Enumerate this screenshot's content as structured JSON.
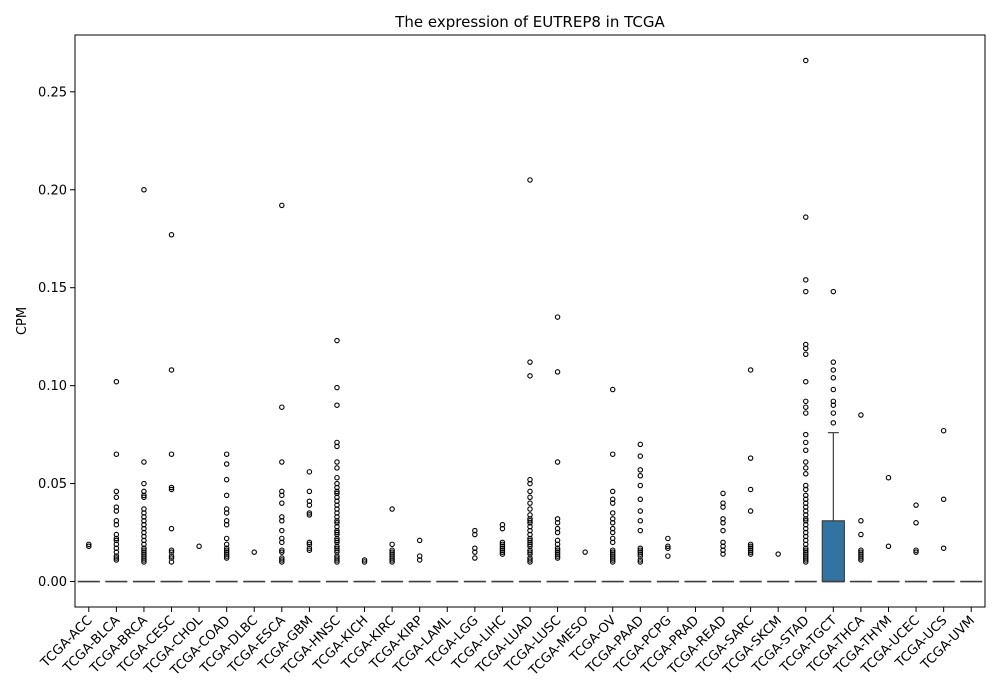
{
  "chart_data": {
    "type": "box",
    "title": "The expression of EUTREP8 in TCGA",
    "xlabel": "",
    "ylabel": "CPM",
    "ylim": [
      -0.013,
      0.279
    ],
    "yticks": [
      0.0,
      0.05,
      0.1,
      0.15,
      0.2,
      0.25
    ],
    "ytick_labels": [
      "0.00",
      "0.05",
      "0.10",
      "0.15",
      "0.20",
      "0.25"
    ],
    "grid": false,
    "box_color": "#3274a1",
    "categories": [
      "TCGA-ACC",
      "TCGA-BLCA",
      "TCGA-BRCA",
      "TCGA-CESC",
      "TCGA-CHOL",
      "TCGA-COAD",
      "TCGA-DLBC",
      "TCGA-ESCA",
      "TCGA-GBM",
      "TCGA-HNSC",
      "TCGA-KICH",
      "TCGA-KIRC",
      "TCGA-KIRP",
      "TCGA-LAML",
      "TCGA-LGG",
      "TCGA-LIHC",
      "TCGA-LUAD",
      "TCGA-LUSC",
      "TCGA-MESO",
      "TCGA-OV",
      "TCGA-PAAD",
      "TCGA-PCPG",
      "TCGA-PRAD",
      "TCGA-READ",
      "TCGA-SARC",
      "TCGA-SKCM",
      "TCGA-STAD",
      "TCGA-TGCT",
      "TCGA-THCA",
      "TCGA-THYM",
      "TCGA-UCEC",
      "TCGA-UCS",
      "TCGA-UVM"
    ],
    "boxes": [
      {
        "q1": 0,
        "median": 0,
        "q3": 0,
        "whisker_low": 0,
        "whisker_high": 0,
        "outliers": [
          0.019,
          0.018
        ]
      },
      {
        "q1": 0,
        "median": 0,
        "q3": 0,
        "whisker_low": 0,
        "whisker_high": 0,
        "outliers": [
          0.102,
          0.065,
          0.046,
          0.043,
          0.038,
          0.036,
          0.031,
          0.029,
          0.024,
          0.022,
          0.021,
          0.019,
          0.017,
          0.015,
          0.013,
          0.012,
          0.011
        ]
      },
      {
        "q1": 0,
        "median": 0,
        "q3": 0,
        "whisker_low": 0,
        "whisker_high": 0,
        "outliers": [
          0.2,
          0.061,
          0.05,
          0.046,
          0.044,
          0.043,
          0.037,
          0.035,
          0.033,
          0.031,
          0.029,
          0.027,
          0.025,
          0.023,
          0.021,
          0.019,
          0.017,
          0.016,
          0.015,
          0.014,
          0.013,
          0.012,
          0.011,
          0.01
        ]
      },
      {
        "q1": 0,
        "median": 0,
        "q3": 0,
        "whisker_low": 0,
        "whisker_high": 0,
        "outliers": [
          0.177,
          0.108,
          0.065,
          0.048,
          0.047,
          0.027,
          0.016,
          0.015,
          0.013,
          0.012,
          0.01
        ]
      },
      {
        "q1": 0,
        "median": 0,
        "q3": 0,
        "whisker_low": 0,
        "whisker_high": 0,
        "outliers": [
          0.018
        ]
      },
      {
        "q1": 0,
        "median": 0,
        "q3": 0,
        "whisker_low": 0,
        "whisker_high": 0,
        "outliers": [
          0.065,
          0.06,
          0.052,
          0.044,
          0.037,
          0.035,
          0.031,
          0.029,
          0.022,
          0.019,
          0.017,
          0.016,
          0.015,
          0.014,
          0.013,
          0.012
        ]
      },
      {
        "q1": 0,
        "median": 0,
        "q3": 0,
        "whisker_low": 0,
        "whisker_high": 0,
        "outliers": [
          0.015
        ]
      },
      {
        "q1": 0,
        "median": 0,
        "q3": 0,
        "whisker_low": 0,
        "whisker_high": 0,
        "outliers": [
          0.192,
          0.089,
          0.061,
          0.046,
          0.044,
          0.04,
          0.033,
          0.031,
          0.026,
          0.022,
          0.02,
          0.016,
          0.015,
          0.012,
          0.011,
          0.01
        ]
      },
      {
        "q1": 0,
        "median": 0,
        "q3": 0,
        "whisker_low": 0,
        "whisker_high": 0,
        "outliers": [
          0.056,
          0.046,
          0.041,
          0.039,
          0.035,
          0.034,
          0.02,
          0.019,
          0.017,
          0.016
        ]
      },
      {
        "q1": 0,
        "median": 0,
        "q3": 0,
        "whisker_low": 0,
        "whisker_high": 0,
        "outliers": [
          0.123,
          0.099,
          0.09,
          0.071,
          0.069,
          0.061,
          0.058,
          0.053,
          0.05,
          0.048,
          0.046,
          0.045,
          0.043,
          0.041,
          0.039,
          0.037,
          0.035,
          0.033,
          0.031,
          0.03,
          0.028,
          0.026,
          0.025,
          0.024,
          0.022,
          0.021,
          0.02,
          0.018,
          0.017,
          0.016,
          0.015,
          0.013,
          0.012,
          0.011,
          0.01
        ]
      },
      {
        "q1": 0,
        "median": 0,
        "q3": 0,
        "whisker_low": 0,
        "whisker_high": 0,
        "outliers": [
          0.011,
          0.01
        ]
      },
      {
        "q1": 0,
        "median": 0,
        "q3": 0,
        "whisker_low": 0,
        "whisker_high": 0,
        "outliers": [
          0.037,
          0.019,
          0.016,
          0.015,
          0.014,
          0.013,
          0.012,
          0.011,
          0.01
        ]
      },
      {
        "q1": 0,
        "median": 0,
        "q3": 0,
        "whisker_low": 0,
        "whisker_high": 0,
        "outliers": [
          0.021,
          0.013,
          0.011
        ]
      },
      {
        "q1": 0,
        "median": 0,
        "q3": 0,
        "whisker_low": 0,
        "whisker_high": 0,
        "outliers": []
      },
      {
        "q1": 0,
        "median": 0,
        "q3": 0,
        "whisker_low": 0,
        "whisker_high": 0,
        "outliers": [
          0.026,
          0.024,
          0.017,
          0.015,
          0.012
        ]
      },
      {
        "q1": 0,
        "median": 0,
        "q3": 0,
        "whisker_low": 0,
        "whisker_high": 0,
        "outliers": [
          0.029,
          0.027,
          0.02,
          0.019,
          0.018,
          0.017,
          0.016,
          0.015,
          0.014
        ]
      },
      {
        "q1": 0,
        "median": 0,
        "q3": 0,
        "whisker_low": 0,
        "whisker_high": 0,
        "outliers": [
          0.205,
          0.112,
          0.105,
          0.052,
          0.05,
          0.046,
          0.043,
          0.04,
          0.037,
          0.034,
          0.032,
          0.031,
          0.03,
          0.028,
          0.026,
          0.024,
          0.022,
          0.021,
          0.02,
          0.019,
          0.018,
          0.016,
          0.015,
          0.014,
          0.012,
          0.011,
          0.01
        ]
      },
      {
        "q1": 0,
        "median": 0,
        "q3": 0,
        "whisker_low": 0,
        "whisker_high": 0,
        "outliers": [
          0.135,
          0.107,
          0.061,
          0.032,
          0.03,
          0.027,
          0.025,
          0.021,
          0.019,
          0.017,
          0.016,
          0.015,
          0.014,
          0.013,
          0.012
        ]
      },
      {
        "q1": 0,
        "median": 0,
        "q3": 0,
        "whisker_low": 0,
        "whisker_high": 0,
        "outliers": [
          0.015
        ]
      },
      {
        "q1": 0,
        "median": 0,
        "q3": 0,
        "whisker_low": 0,
        "whisker_high": 0,
        "outliers": [
          0.098,
          0.065,
          0.046,
          0.042,
          0.04,
          0.035,
          0.032,
          0.03,
          0.027,
          0.025,
          0.022,
          0.02,
          0.016,
          0.015,
          0.014,
          0.013,
          0.012,
          0.011,
          0.01
        ]
      },
      {
        "q1": 0,
        "median": 0,
        "q3": 0,
        "whisker_low": 0,
        "whisker_high": 0,
        "outliers": [
          0.07,
          0.064,
          0.057,
          0.054,
          0.049,
          0.042,
          0.036,
          0.031,
          0.026,
          0.017,
          0.016,
          0.015,
          0.014,
          0.013,
          0.011,
          0.01
        ]
      },
      {
        "q1": 0,
        "median": 0,
        "q3": 0,
        "whisker_low": 0,
        "whisker_high": 0,
        "outliers": [
          0.022,
          0.018,
          0.017,
          0.013
        ]
      },
      {
        "q1": 0,
        "median": 0,
        "q3": 0,
        "whisker_low": 0,
        "whisker_high": 0,
        "outliers": []
      },
      {
        "q1": 0,
        "median": 0,
        "q3": 0,
        "whisker_low": 0,
        "whisker_high": 0,
        "outliers": [
          0.045,
          0.04,
          0.038,
          0.032,
          0.03,
          0.026,
          0.02,
          0.018,
          0.016,
          0.014
        ]
      },
      {
        "q1": 0,
        "median": 0,
        "q3": 0,
        "whisker_low": 0,
        "whisker_high": 0,
        "outliers": [
          0.108,
          0.063,
          0.047,
          0.036,
          0.019,
          0.018,
          0.017,
          0.016,
          0.015,
          0.014
        ]
      },
      {
        "q1": 0,
        "median": 0,
        "q3": 0,
        "whisker_low": 0,
        "whisker_high": 0,
        "outliers": [
          0.014
        ]
      },
      {
        "q1": 0,
        "median": 0,
        "q3": 0,
        "whisker_low": 0,
        "whisker_high": 0,
        "outliers": [
          0.266,
          0.186,
          0.154,
          0.148,
          0.121,
          0.119,
          0.116,
          0.102,
          0.092,
          0.089,
          0.086,
          0.075,
          0.071,
          0.067,
          0.061,
          0.058,
          0.055,
          0.049,
          0.047,
          0.044,
          0.042,
          0.04,
          0.038,
          0.036,
          0.034,
          0.032,
          0.031,
          0.029,
          0.027,
          0.025,
          0.023,
          0.021,
          0.019,
          0.017,
          0.016,
          0.015,
          0.014,
          0.013,
          0.012,
          0.011,
          0.01
        ]
      },
      {
        "q1": 0,
        "median": 0,
        "q3": 0.031,
        "whisker_low": 0,
        "whisker_high": 0.076,
        "outliers": [
          0.148,
          0.112,
          0.108,
          0.104,
          0.098,
          0.092,
          0.09,
          0.086,
          0.081
        ]
      },
      {
        "q1": 0,
        "median": 0,
        "q3": 0,
        "whisker_low": 0,
        "whisker_high": 0,
        "outliers": [
          0.085,
          0.031,
          0.024,
          0.016,
          0.015,
          0.014,
          0.013,
          0.012,
          0.011
        ]
      },
      {
        "q1": 0,
        "median": 0,
        "q3": 0,
        "whisker_low": 0,
        "whisker_high": 0,
        "outliers": [
          0.053,
          0.018
        ]
      },
      {
        "q1": 0,
        "median": 0,
        "q3": 0,
        "whisker_low": 0,
        "whisker_high": 0,
        "outliers": [
          0.039,
          0.03,
          0.016,
          0.015
        ]
      },
      {
        "q1": 0,
        "median": 0,
        "q3": 0,
        "whisker_low": 0,
        "whisker_high": 0,
        "outliers": [
          0.077,
          0.042,
          0.017
        ]
      },
      {
        "q1": 0,
        "median": 0,
        "q3": 0,
        "whisker_low": 0,
        "whisker_high": 0,
        "outliers": []
      }
    ]
  }
}
